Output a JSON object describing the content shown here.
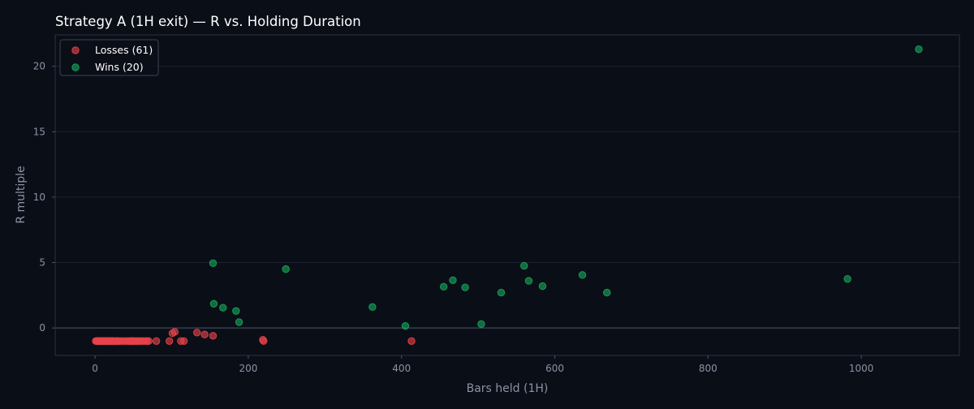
{
  "chart_data": {
    "type": "scatter",
    "title": "Strategy A (1H exit) — R vs. Holding Duration",
    "xlabel": "Bars held (1H)",
    "ylabel": "R multiple",
    "xlim": [
      -52,
      1128
    ],
    "ylim": [
      -2.1,
      22.4
    ],
    "xticks": [
      0,
      200,
      400,
      600,
      800,
      1000
    ],
    "yticks": [
      0,
      5,
      10,
      15,
      20
    ],
    "grid": true,
    "zero_line": true,
    "legend": "top-left",
    "series": [
      {
        "name": "Losses (61)",
        "color": "#e8424a",
        "points": [
          [
            1,
            -1
          ],
          [
            2,
            -1
          ],
          [
            3,
            -1
          ],
          [
            4,
            -1
          ],
          [
            5,
            -1
          ],
          [
            6,
            -1
          ],
          [
            7,
            -1
          ],
          [
            8,
            -1
          ],
          [
            9,
            -1
          ],
          [
            10,
            -1
          ],
          [
            11,
            -1
          ],
          [
            12,
            -1
          ],
          [
            13,
            -1
          ],
          [
            14,
            -1
          ],
          [
            15,
            -1
          ],
          [
            16,
            -1
          ],
          [
            17,
            -1
          ],
          [
            18,
            -1
          ],
          [
            19,
            -1
          ],
          [
            20,
            -1
          ],
          [
            21,
            -1
          ],
          [
            22,
            -1
          ],
          [
            23,
            -1
          ],
          [
            24,
            -1
          ],
          [
            25,
            -1
          ],
          [
            27,
            -1
          ],
          [
            28,
            -1
          ],
          [
            29,
            -1
          ],
          [
            30,
            -1
          ],
          [
            31,
            -1
          ],
          [
            42,
            -1
          ],
          [
            44,
            -1
          ],
          [
            46,
            -1
          ],
          [
            47,
            -1
          ],
          [
            48,
            -1
          ],
          [
            49,
            -1
          ],
          [
            50,
            -1
          ],
          [
            52,
            -1
          ],
          [
            54,
            -1
          ],
          [
            56,
            -1
          ],
          [
            58,
            -1
          ],
          [
            60,
            -1
          ],
          [
            63,
            -1
          ],
          [
            66,
            -1
          ],
          [
            68,
            -1
          ],
          [
            70,
            -1
          ],
          [
            80,
            -1
          ],
          [
            97,
            -1
          ],
          [
            101,
            -0.4
          ],
          [
            104,
            -0.3
          ],
          [
            112,
            -1
          ],
          [
            116,
            -1
          ],
          [
            133,
            -0.35
          ],
          [
            143,
            -0.5
          ],
          [
            154,
            -0.6
          ],
          [
            219,
            -0.9
          ],
          [
            220,
            -1
          ],
          [
            413,
            -1
          ],
          [
            36,
            -1
          ],
          [
            39,
            -1
          ],
          [
            34,
            -1
          ]
        ]
      },
      {
        "name": "Wins (20)",
        "color": "#17a65a",
        "points": [
          [
            154,
            4.95
          ],
          [
            155,
            1.85
          ],
          [
            167,
            1.55
          ],
          [
            184,
            1.3
          ],
          [
            188,
            0.45
          ],
          [
            249,
            4.5
          ],
          [
            362,
            1.6
          ],
          [
            405,
            0.15
          ],
          [
            455,
            3.15
          ],
          [
            467,
            3.65
          ],
          [
            483,
            3.1
          ],
          [
            504,
            0.3
          ],
          [
            530,
            2.7
          ],
          [
            560,
            4.75
          ],
          [
            566,
            3.6
          ],
          [
            584,
            3.2
          ],
          [
            636,
            4.05
          ],
          [
            668,
            2.7
          ],
          [
            982,
            3.75
          ],
          [
            1075,
            21.3
          ]
        ]
      }
    ]
  }
}
